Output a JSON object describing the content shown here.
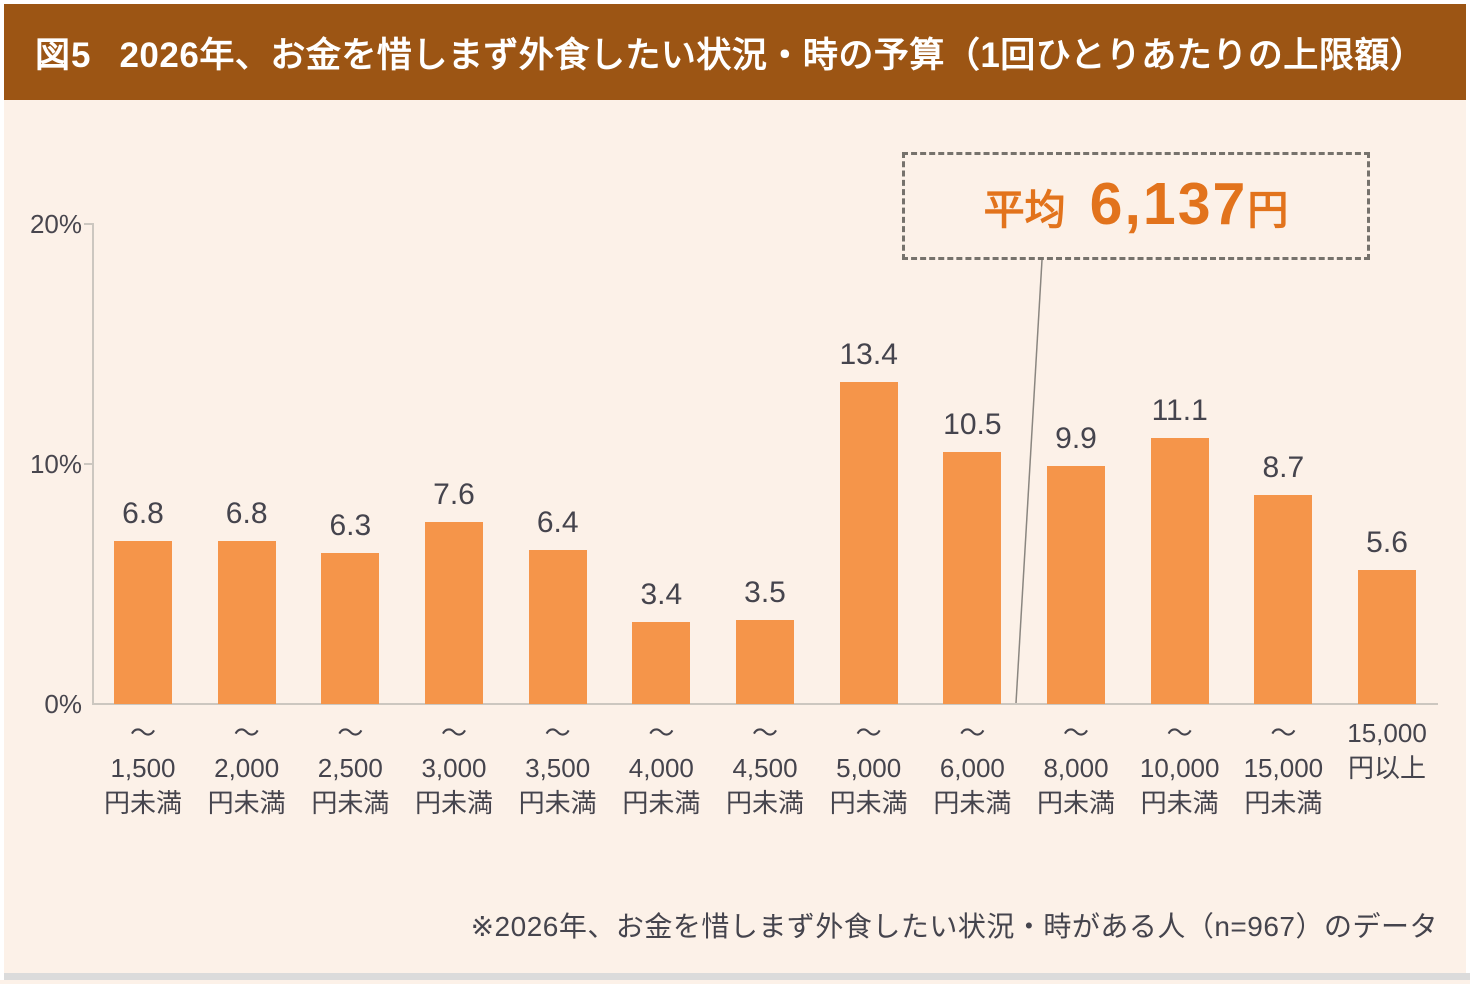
{
  "header": {
    "figure_label": "図5",
    "title": "2026年、お金を惜しまず外食したい状況・時の予算（1回ひとりあたりの上限額）"
  },
  "annotation": {
    "label": "平均",
    "value": "6,137",
    "unit": "円"
  },
  "footnote": "※2026年、お金を惜しまず外食したい状況・時がある人（n=967）のデータ",
  "chart_data": {
    "type": "bar",
    "title": "2026年、お金を惜しまず外食したい状況・時の予算（1回ひとりあたりの上限額）",
    "categories": [
      "～1,500円未満",
      "～2,000円未満",
      "～2,500円未満",
      "～3,000円未満",
      "～3,500円未満",
      "～4,000円未満",
      "～4,500円未満",
      "～5,000円未満",
      "～6,000円未満",
      "～8,000円未満",
      "～10,000円未満",
      "～15,000円未満",
      "15,000円以上"
    ],
    "category_lines": [
      [
        "～",
        "1,500",
        "円未満"
      ],
      [
        "～",
        "2,000",
        "円未満"
      ],
      [
        "～",
        "2,500",
        "円未満"
      ],
      [
        "～",
        "3,000",
        "円未満"
      ],
      [
        "～",
        "3,500",
        "円未満"
      ],
      [
        "～",
        "4,000",
        "円未満"
      ],
      [
        "～",
        "4,500",
        "円未満"
      ],
      [
        "～",
        "5,000",
        "円未満"
      ],
      [
        "～",
        "6,000",
        "円未満"
      ],
      [
        "～",
        "8,000",
        "円未満"
      ],
      [
        "～",
        "10,000",
        "円未満"
      ],
      [
        "～",
        "15,000",
        "円未満"
      ],
      [
        "15,000",
        "円以上"
      ]
    ],
    "values": [
      6.8,
      6.8,
      6.3,
      7.6,
      6.4,
      3.4,
      3.5,
      13.4,
      10.5,
      9.9,
      11.1,
      8.7,
      5.6
    ],
    "value_suffix": "%",
    "average_value_yen": "6,137",
    "xlabel": "",
    "ylabel": "",
    "ylim": [
      0,
      20
    ],
    "y_ticks": [
      {
        "label": "20%",
        "value": 20
      },
      {
        "label": "10%",
        "value": 10
      },
      {
        "label": "0%",
        "value": 0
      }
    ],
    "grid": false,
    "legend": false,
    "colors": {
      "bar": "#f5954a",
      "header_background": "#9c5514",
      "header_text": "#ffffff",
      "background": "#fcf1e8",
      "annotation_text": "#e2731c",
      "axis": "#ccc7c0",
      "label_text": "#45444d"
    }
  }
}
